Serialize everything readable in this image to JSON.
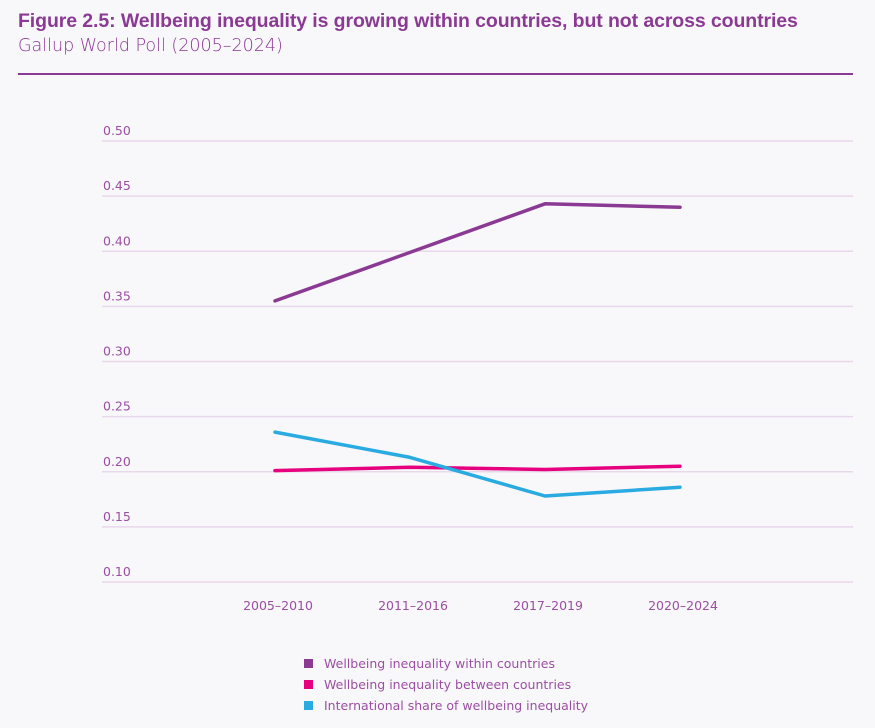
{
  "header": {
    "title": "Figure 2.5: Wellbeing inequality is growing within countries, but not across countries",
    "subtitle": "Gallup World Poll (2005–2024)"
  },
  "colors": {
    "accent": "#8b3a94",
    "gridline": "#e8d9ea",
    "text": "#9b4fa3"
  },
  "chart_data": {
    "type": "line",
    "title": "Figure 2.5: Wellbeing inequality is growing within countries, but not across countries",
    "subtitle": "Gallup World Poll (2005–2024)",
    "xlabel": "",
    "ylabel": "",
    "categories": [
      "2005–2010",
      "2011–2016",
      "2017–2019",
      "2020–2024"
    ],
    "ylim": [
      0.1,
      0.5
    ],
    "yticks": [
      0.5,
      0.45,
      0.4,
      0.35,
      0.3,
      0.25,
      0.2,
      0.15,
      0.1
    ],
    "ytick_labels": [
      "0.50",
      "0.45",
      "0.40",
      "0.35",
      "0.30",
      "0.25",
      "0.20",
      "0.15",
      "0.10"
    ],
    "grid": true,
    "legend_position": "bottom-center",
    "series": [
      {
        "name": "Wellbeing inequality within countries",
        "color": "#8b3a94",
        "values": [
          0.355,
          0.399,
          0.443,
          0.44
        ]
      },
      {
        "name": "Wellbeing inequality between countries",
        "color": "#e6007e",
        "values": [
          0.201,
          0.204,
          0.202,
          0.205
        ]
      },
      {
        "name": "International share of wellbeing inequality",
        "color": "#29abe2",
        "values": [
          0.236,
          0.213,
          0.178,
          0.186
        ]
      }
    ]
  }
}
